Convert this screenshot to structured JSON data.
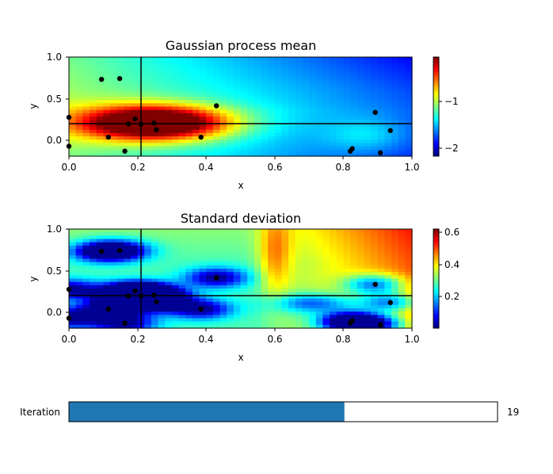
{
  "chart_data": [
    {
      "type": "heatmap",
      "title": "Gaussian process mean",
      "xlabel": "x",
      "ylabel": "y",
      "xlim": [
        0,
        1
      ],
      "ylim": [
        -0.2,
        1
      ],
      "xticks": [
        "0.0",
        "0.2",
        "0.4",
        "0.6",
        "0.8",
        "1.0"
      ],
      "yticks": [
        "0.0",
        "0.5",
        "1.0"
      ],
      "colormap": "jet",
      "colorbar": {
        "range": [
          -2.2,
          0.1
        ],
        "ticks": [
          "−1",
          "−2"
        ],
        "tick_values": [
          -1,
          -2
        ]
      },
      "crosshair": {
        "x": 0.21,
        "y": 0.2
      }
    },
    {
      "type": "heatmap",
      "title": "Standard deviation",
      "xlabel": "x",
      "ylabel": "y",
      "xlim": [
        0,
        1
      ],
      "ylim": [
        -0.2,
        1
      ],
      "xticks": [
        "0.0",
        "0.2",
        "0.4",
        "0.6",
        "0.8",
        "1.0"
      ],
      "yticks": [
        "0.0",
        "0.5",
        "1.0"
      ],
      "colormap": "jet",
      "colorbar": {
        "range": [
          0,
          0.62
        ],
        "ticks": [
          "0.6",
          "0.4",
          "0.2"
        ],
        "tick_values": [
          0.6,
          0.4,
          0.2
        ]
      },
      "crosshair": {
        "x": 0.21,
        "y": 0.2
      }
    }
  ],
  "observations": [
    [
      0.0,
      0.27
    ],
    [
      0.0,
      -0.08
    ],
    [
      0.095,
      0.73
    ],
    [
      0.148,
      0.74
    ],
    [
      0.115,
      0.03
    ],
    [
      0.163,
      -0.14
    ],
    [
      0.173,
      0.19
    ],
    [
      0.193,
      0.25
    ],
    [
      0.21,
      0.19
    ],
    [
      0.248,
      0.2
    ],
    [
      0.255,
      0.12
    ],
    [
      0.385,
      0.03
    ],
    [
      0.43,
      0.41
    ],
    [
      0.82,
      -0.14
    ],
    [
      0.826,
      -0.11
    ],
    [
      0.893,
      0.33
    ],
    [
      0.908,
      -0.16
    ],
    [
      0.937,
      0.11
    ]
  ],
  "slider": {
    "label": "Iteration",
    "value_text": "19",
    "fill_fraction": 0.643,
    "fill_color": "#1f77b4"
  }
}
